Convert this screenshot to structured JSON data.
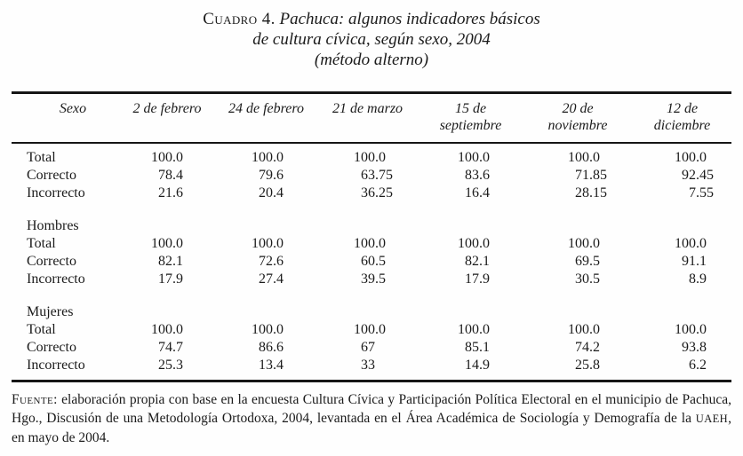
{
  "title": {
    "prefix": "Cuadro 4.",
    "line1": "Pachuca: algunos indicadores básicos",
    "line2": "de cultura cívica, según sexo, 2004",
    "line3": "(método alterno)"
  },
  "table": {
    "header": {
      "sexo": "Sexo",
      "dates": [
        [
          "2 de febrero"
        ],
        [
          "24 de febrero"
        ],
        [
          "21 de marzo"
        ],
        [
          "15 de",
          "septiembre"
        ],
        [
          "20 de",
          "noviembre"
        ],
        [
          "12 de",
          "diciembre"
        ]
      ]
    },
    "sections": [
      {
        "label": "",
        "rows": [
          {
            "label": "Total",
            "values": [
              "100.0",
              "100.0",
              "100.0",
              "100.0",
              "100.0",
              "100.0"
            ]
          },
          {
            "label": "Correcto",
            "values": [
              "78.4",
              "79.6",
              "63.75",
              "83.6",
              "71.85",
              "92.45"
            ]
          },
          {
            "label": "Incorrecto",
            "values": [
              "21.6",
              "20.4",
              "36.25",
              "16.4",
              "28.15",
              "7.55"
            ]
          }
        ]
      },
      {
        "label": "Hombres",
        "rows": [
          {
            "label": "Total",
            "values": [
              "100.0",
              "100.0",
              "100.0",
              "100.0",
              "100.0",
              "100.0"
            ]
          },
          {
            "label": "Correcto",
            "values": [
              "82.1",
              "72.6",
              "60.5",
              "82.1",
              "69.5",
              "91.1"
            ]
          },
          {
            "label": "Incorrecto",
            "values": [
              "17.9",
              "27.4",
              "39.5",
              "17.9",
              "30.5",
              "8.9"
            ]
          }
        ]
      },
      {
        "label": "Mujeres",
        "rows": [
          {
            "label": "Total",
            "values": [
              "100.0",
              "100.0",
              "100.0",
              "100.0",
              "100.0",
              "100.0"
            ]
          },
          {
            "label": "Correcto",
            "values": [
              "74.7",
              "86.6",
              "67",
              "85.1",
              "74.2",
              "93.8"
            ]
          },
          {
            "label": "Incorrecto",
            "values": [
              "25.3",
              "13.4",
              "33",
              "14.9",
              "25.8",
              "6.2"
            ]
          }
        ]
      }
    ]
  },
  "footer": {
    "prefix": "Fuente:",
    "text_before_acronym": "elaboración propia con base en la encuesta Cultura Cívica y Participación Política Electoral en el municipio de Pachuca, Hgo., Discusión de una Metodología Ortodoxa, 2004, levantada en el Área Académica de Sociología y Demografía de la",
    "acronym": "UAEH",
    "text_after_acronym": ", en mayo de 2004."
  },
  "colors": {
    "text": "#1b1b1b",
    "rule": "#161616",
    "background": "#fefefe"
  }
}
